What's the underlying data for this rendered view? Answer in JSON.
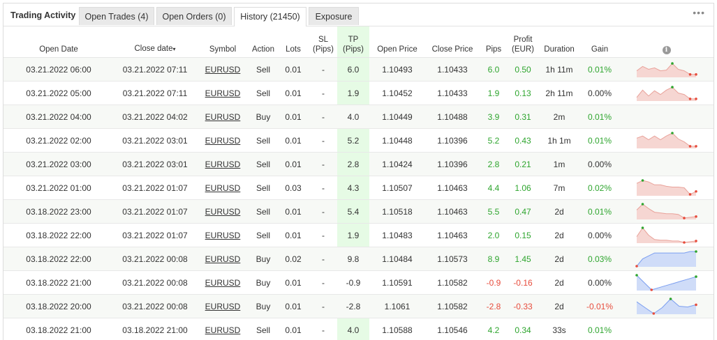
{
  "header": {
    "title": "Trading Activity",
    "tabs": [
      {
        "label": "Open Trades (4)",
        "active": false
      },
      {
        "label": "Open Orders (0)",
        "active": false
      },
      {
        "label": "History (21450)",
        "active": true
      },
      {
        "label": "Exposure",
        "active": false
      }
    ],
    "more_label": "•••"
  },
  "table": {
    "columns": [
      "Open Date",
      "Close date",
      "Symbol",
      "Action",
      "Lots",
      "SL (Pips)",
      "TP (Pips)",
      "Open Price",
      "Close Price",
      "Pips",
      "Profit (EUR)",
      "Duration",
      "Gain"
    ],
    "sort_indicator": "▾",
    "info_icon_glyph": "i",
    "colors": {
      "positive": "#2ea52e",
      "negative": "#e74c3c",
      "tp_highlight": "#e6fbe5"
    },
    "rows": [
      {
        "open_date": "03.21.2022 06:00",
        "close_date": "03.21.2022 07:11",
        "symbol": "EURUSD",
        "action": "Sell",
        "lots": "0.01",
        "sl": "-",
        "tp": "6.0",
        "open_price": "1.10493",
        "close_price": "1.10433",
        "pips": "6.0",
        "profit": "0.50",
        "duration": "1h 11m",
        "gain": "0.01%",
        "tp_hit": true,
        "spark": [
          0.6,
          0.3,
          0.5,
          0.4,
          0.6,
          0.55,
          0.1,
          0.5,
          0.6,
          0.85,
          0.85
        ],
        "spark_color": "#e9a29a",
        "spark_fill": "#f6d6d2",
        "spark_marks": [
          [
            6,
            "#2ea52e"
          ],
          [
            9,
            "#e74c3c"
          ],
          [
            10,
            "#e74c3c"
          ]
        ]
      },
      {
        "open_date": "03.21.2022 05:00",
        "close_date": "03.21.2022 07:11",
        "symbol": "EURUSD",
        "action": "Sell",
        "lots": "0.01",
        "sl": "-",
        "tp": "1.9",
        "open_price": "1.10452",
        "close_price": "1.10433",
        "pips": "1.9",
        "profit": "0.13",
        "duration": "2h 11m",
        "gain": "0.00%",
        "tp_hit": true,
        "spark": [
          0.8,
          0.3,
          0.7,
          0.35,
          0.6,
          0.3,
          0.1,
          0.5,
          0.6,
          0.9,
          0.9
        ],
        "spark_color": "#e9a29a",
        "spark_fill": "#f6d6d2",
        "spark_marks": [
          [
            6,
            "#2ea52e"
          ],
          [
            9,
            "#e74c3c"
          ],
          [
            10,
            "#e74c3c"
          ]
        ]
      },
      {
        "open_date": "03.21.2022 04:00",
        "close_date": "03.21.2022 04:02",
        "symbol": "EURUSD",
        "action": "Buy",
        "lots": "0.01",
        "sl": "-",
        "tp": "4.0",
        "open_price": "1.10449",
        "close_price": "1.10488",
        "pips": "3.9",
        "profit": "0.31",
        "duration": "2m",
        "gain": "0.01%",
        "tp_hit": false,
        "spark": [],
        "spark_marks": []
      },
      {
        "open_date": "03.21.2022 02:00",
        "close_date": "03.21.2022 03:01",
        "symbol": "EURUSD",
        "action": "Sell",
        "lots": "0.01",
        "sl": "-",
        "tp": "5.2",
        "open_price": "1.10448",
        "close_price": "1.10396",
        "pips": "5.2",
        "profit": "0.43",
        "duration": "1h 1m",
        "gain": "0.01%",
        "tp_hit": true,
        "spark": [
          0.35,
          0.2,
          0.45,
          0.2,
          0.45,
          0.2,
          0.0,
          0.4,
          0.6,
          0.9,
          0.9
        ],
        "spark_color": "#e9a29a",
        "spark_fill": "#f6d6d2",
        "spark_marks": [
          [
            6,
            "#2ea52e"
          ],
          [
            9,
            "#e74c3c"
          ],
          [
            10,
            "#e74c3c"
          ]
        ]
      },
      {
        "open_date": "03.21.2022 03:00",
        "close_date": "03.21.2022 03:01",
        "symbol": "EURUSD",
        "action": "Sell",
        "lots": "0.01",
        "sl": "-",
        "tp": "2.8",
        "open_price": "1.10424",
        "close_price": "1.10396",
        "pips": "2.8",
        "profit": "0.21",
        "duration": "1m",
        "gain": "0.00%",
        "tp_hit": true,
        "spark": [],
        "spark_marks": []
      },
      {
        "open_date": "03.21.2022 01:00",
        "close_date": "03.21.2022 01:07",
        "symbol": "EURUSD",
        "action": "Sell",
        "lots": "0.03",
        "sl": "-",
        "tp": "4.3",
        "open_price": "1.10507",
        "close_price": "1.10463",
        "pips": "4.4",
        "profit": "1.06",
        "duration": "7m",
        "gain": "0.02%",
        "tp_hit": true,
        "spark": [
          0.2,
          0.0,
          0.1,
          0.3,
          0.3,
          0.4,
          0.45,
          0.45,
          0.5,
          0.95,
          0.75
        ],
        "spark_color": "#e9a29a",
        "spark_fill": "#f6d6d2",
        "spark_marks": [
          [
            1,
            "#2ea52e"
          ],
          [
            9,
            "#e74c3c"
          ],
          [
            10,
            "#e74c3c"
          ]
        ]
      },
      {
        "open_date": "03.18.2022 23:00",
        "close_date": "03.21.2022 01:07",
        "symbol": "EURUSD",
        "action": "Sell",
        "lots": "0.01",
        "sl": "-",
        "tp": "5.4",
        "open_price": "1.10518",
        "close_price": "1.10463",
        "pips": "5.5",
        "profit": "0.47",
        "duration": "2d",
        "gain": "0.01%",
        "tp_hit": true,
        "spark": [
          0.4,
          0.0,
          0.3,
          0.55,
          0.6,
          0.65,
          0.65,
          0.7,
          0.95,
          0.9,
          0.85
        ],
        "spark_color": "#e9a29a",
        "spark_fill": "#f6d6d2",
        "spark_marks": [
          [
            1,
            "#2ea52e"
          ],
          [
            8,
            "#e74c3c"
          ],
          [
            10,
            "#e74c3c"
          ]
        ]
      },
      {
        "open_date": "03.18.2022 22:00",
        "close_date": "03.21.2022 01:07",
        "symbol": "EURUSD",
        "action": "Sell",
        "lots": "0.01",
        "sl": "-",
        "tp": "1.9",
        "open_price": "1.10483",
        "close_price": "1.10463",
        "pips": "2.0",
        "profit": "0.15",
        "duration": "2d",
        "gain": "0.00%",
        "tp_hit": true,
        "spark": [
          0.6,
          0.0,
          0.5,
          0.8,
          0.85,
          0.85,
          0.9,
          0.9,
          1.0,
          0.95,
          0.9
        ],
        "spark_color": "#e9a29a",
        "spark_fill": "#f6d6d2",
        "spark_marks": [
          [
            1,
            "#2ea52e"
          ],
          [
            8,
            "#e74c3c"
          ],
          [
            10,
            "#e74c3c"
          ]
        ]
      },
      {
        "open_date": "03.18.2022 22:00",
        "close_date": "03.21.2022 00:08",
        "symbol": "EURUSD",
        "action": "Buy",
        "lots": "0.02",
        "sl": "-",
        "tp": "9.8",
        "open_price": "1.10484",
        "close_price": "1.10573",
        "pips": "8.9",
        "profit": "1.45",
        "duration": "2d",
        "gain": "0.03%",
        "tp_hit": false,
        "spark": [
          1.0,
          0.5,
          0.3,
          0.1,
          0.1,
          0.1,
          0.1,
          0.1,
          0.1,
          0.0,
          0.0
        ],
        "spark_color": "#7b9ef0",
        "spark_fill": "#cfdcf8",
        "spark_marks": [
          [
            0,
            "#e74c3c"
          ],
          [
            10,
            "#2ea52e"
          ]
        ]
      },
      {
        "open_date": "03.18.2022 21:00",
        "close_date": "03.21.2022 00:08",
        "symbol": "EURUSD",
        "action": "Buy",
        "lots": "0.01",
        "sl": "-",
        "tp": "-0.9",
        "open_price": "1.10591",
        "close_price": "1.10582",
        "pips": "-0.9",
        "profit": "-0.16",
        "duration": "2d",
        "gain": "0.00%",
        "tp_hit": false,
        "spark": [
          0.0,
          0.5,
          1.0,
          0.85,
          0.7,
          0.55,
          0.4,
          0.25,
          0.1
        ],
        "spark_color": "#7b9ef0",
        "spark_fill": "#cfdcf8",
        "spark_marks": [
          [
            0,
            "#2ea52e"
          ],
          [
            2,
            "#e74c3c"
          ],
          [
            8,
            "#2ea52e"
          ]
        ]
      },
      {
        "open_date": "03.18.2022 20:00",
        "close_date": "03.21.2022 00:08",
        "symbol": "EURUSD",
        "action": "Buy",
        "lots": "0.01",
        "sl": "-",
        "tp": "-2.8",
        "open_price": "1.1061",
        "close_price": "1.10582",
        "pips": "-2.8",
        "profit": "-0.33",
        "duration": "2d",
        "gain": "-0.01%",
        "tp_hit": false,
        "spark": [
          0.2,
          0.6,
          1.0,
          0.6,
          0.0,
          0.5,
          0.55,
          0.4
        ],
        "spark_color": "#7b9ef0",
        "spark_fill": "#cfdcf8",
        "spark_marks": [
          [
            2,
            "#e74c3c"
          ],
          [
            4,
            "#2ea52e"
          ],
          [
            7,
            "#e74c3c"
          ]
        ]
      },
      {
        "open_date": "03.18.2022 21:00",
        "close_date": "03.18.2022 21:00",
        "symbol": "EURUSD",
        "action": "Sell",
        "lots": "0.01",
        "sl": "-",
        "tp": "4.0",
        "open_price": "1.10588",
        "close_price": "1.10546",
        "pips": "4.2",
        "profit": "0.34",
        "duration": "33s",
        "gain": "0.01%",
        "tp_hit": true,
        "spark": [],
        "spark_marks": []
      }
    ]
  }
}
